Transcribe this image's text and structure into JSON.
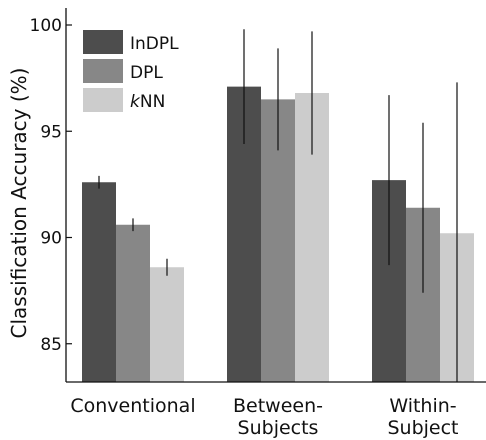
{
  "chart_data": {
    "type": "bar",
    "title": "",
    "xlabel": "",
    "ylabel": "Classification Accuracy (%)",
    "ylim": [
      83.2,
      100.8
    ],
    "yticks": [
      85,
      90,
      95,
      100
    ],
    "grid": false,
    "legend_position": "top-left",
    "categories": [
      [
        "Conventional"
      ],
      [
        "Between-",
        "Subjects"
      ],
      [
        "Within-",
        "Subject"
      ]
    ],
    "series": [
      {
        "name": "InDPL",
        "legend_prefix": "",
        "legend_rest": "InDPL",
        "color": "#4d4d4d",
        "values": [
          92.6,
          97.1,
          92.7
        ],
        "err": [
          0.3,
          2.7,
          4.0
        ]
      },
      {
        "name": "DPL",
        "legend_prefix": "",
        "legend_rest": "DPL",
        "color": "#878787",
        "values": [
          90.6,
          96.5,
          91.4
        ],
        "err": [
          0.3,
          2.4,
          4.0
        ]
      },
      {
        "name": "kNN",
        "legend_prefix": "k",
        "legend_rest": "NN",
        "color": "#cccccc",
        "values": [
          88.6,
          96.8,
          90.2
        ],
        "err": [
          0.4,
          2.9,
          7.1
        ]
      }
    ]
  }
}
